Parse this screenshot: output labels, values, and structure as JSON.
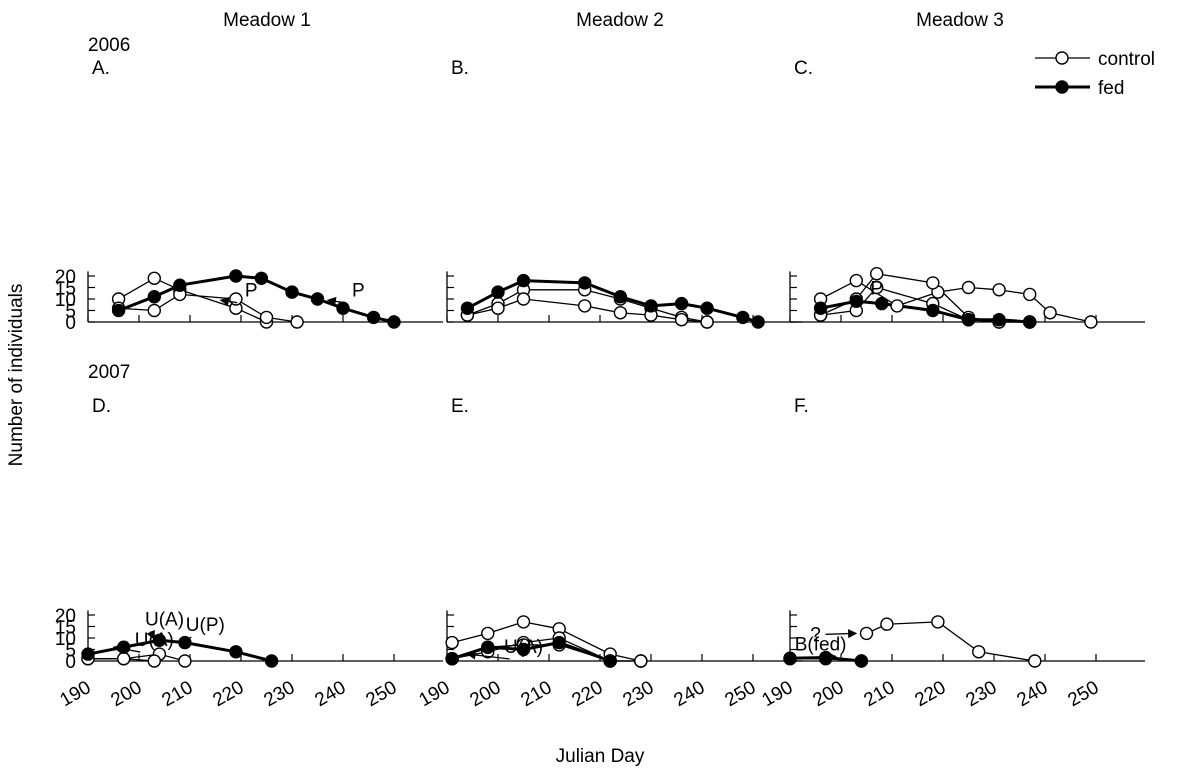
{
  "chart_data": {
    "type": "line",
    "xlabel": "Julian Day",
    "ylabel": "Number of individuals",
    "columns": [
      "Meadow 1",
      "Meadow 2",
      "Meadow 3"
    ],
    "years": [
      "2006",
      "2007"
    ],
    "xlim": [
      190,
      255
    ],
    "ylim": [
      0,
      22
    ],
    "x_ticks": [
      190,
      200,
      210,
      220,
      230,
      240,
      250
    ],
    "y_ticks": [
      0,
      5,
      10,
      15,
      20
    ],
    "legend": {
      "position": "top-right",
      "entries": [
        {
          "label": "control",
          "style": "open"
        },
        {
          "label": "fed",
          "style": "filled"
        }
      ]
    },
    "panels": [
      {
        "id": "A",
        "label": "A.",
        "row": 0,
        "col": 0,
        "control": [
          [
            [
              196,
              10
            ],
            [
              203,
              19
            ],
            [
              208,
              14
            ],
            [
              219,
              6
            ],
            [
              225,
              0
            ]
          ],
          [
            [
              196,
              6
            ],
            [
              203,
              5
            ],
            [
              208,
              12
            ],
            [
              219,
              10
            ],
            [
              225,
              2
            ],
            [
              231,
              0
            ]
          ]
        ],
        "fed": [
          [
            [
              196,
              5
            ],
            [
              203,
              11
            ],
            [
              208,
              16
            ],
            [
              219,
              20
            ],
            [
              224,
              19
            ],
            [
              230,
              13
            ],
            [
              235,
              10
            ],
            [
              240,
              6
            ],
            [
              246,
              2
            ],
            [
              250,
              0
            ]
          ]
        ],
        "annotations": [
          {
            "text": "P",
            "tx": 222,
            "ty": 11,
            "ax": 216,
            "ay": 9.5
          },
          {
            "text": "P",
            "tx": 243,
            "ty": 11,
            "ax": 237,
            "ay": 9.5
          }
        ]
      },
      {
        "id": "B",
        "label": "B.",
        "row": 0,
        "col": 1,
        "control": [
          [
            [
              194,
              3
            ],
            [
              200,
              8
            ],
            [
              205,
              14
            ],
            [
              217,
              14
            ],
            [
              224,
              10
            ],
            [
              230,
              6
            ],
            [
              236,
              2
            ],
            [
              241,
              0
            ]
          ],
          [
            [
              194,
              3
            ],
            [
              200,
              6
            ],
            [
              205,
              10
            ],
            [
              217,
              7
            ],
            [
              224,
              4
            ],
            [
              230,
              3
            ],
            [
              236,
              1
            ],
            [
              241,
              0
            ]
          ]
        ],
        "fed": [
          [
            [
              194,
              6
            ],
            [
              200,
              13
            ],
            [
              205,
              18
            ],
            [
              217,
              17
            ],
            [
              224,
              11
            ],
            [
              230,
              7
            ],
            [
              236,
              8
            ],
            [
              241,
              6
            ],
            [
              248,
              2
            ],
            [
              251,
              0
            ]
          ]
        ],
        "annotations": []
      },
      {
        "id": "C",
        "label": "C.",
        "row": 0,
        "col": 2,
        "control": [
          [
            [
              196,
              10
            ],
            [
              203,
              18
            ],
            [
              211,
              7
            ],
            [
              219,
              13
            ],
            [
              225,
              15
            ],
            [
              231,
              14
            ],
            [
              237,
              12
            ],
            [
              241,
              4
            ],
            [
              249,
              0
            ]
          ],
          [
            [
              196,
              3
            ],
            [
              203,
              10
            ],
            [
              207,
              21
            ],
            [
              218,
              17
            ],
            [
              225,
              2
            ],
            [
              231,
              0
            ],
            [
              237,
              0
            ]
          ],
          [
            [
              196,
              3
            ],
            [
              203,
              5
            ],
            [
              207,
              15
            ],
            [
              218,
              8
            ],
            [
              225,
              1
            ],
            [
              231,
              0
            ],
            [
              237,
              0
            ]
          ]
        ],
        "fed": [
          [
            [
              196,
              6
            ],
            [
              203,
              9
            ],
            [
              208,
              8
            ],
            [
              218,
              5
            ],
            [
              225,
              1
            ],
            [
              231,
              1
            ],
            [
              237,
              0
            ]
          ]
        ],
        "annotations": [
          {
            "text": "P",
            "tx": 207,
            "ty": 12,
            "ax": 202,
            "ay": 9.5
          }
        ]
      },
      {
        "id": "D",
        "label": "D.",
        "row": 1,
        "col": 0,
        "control": [
          [
            [
              190,
              1
            ],
            [
              197,
              1
            ],
            [
              204,
              3
            ],
            [
              209,
              0
            ]
          ],
          [
            [
              190,
              1
            ],
            [
              197,
              1
            ],
            [
              203,
              0
            ]
          ]
        ],
        "fed": [
          [
            [
              190,
              3
            ],
            [
              197,
              6
            ],
            [
              204,
              9
            ],
            [
              209,
              8
            ],
            [
              219,
              4
            ],
            [
              226,
              0
            ]
          ]
        ],
        "annotations": [
          {
            "text": "U(A)",
            "tx": 205,
            "ty": 15.5,
            "ax": 203,
            "ay": 9.5
          },
          {
            "text": "U(P)",
            "tx": 213,
            "ty": 13,
            "ax": 208,
            "ay": 7.5
          },
          {
            "text": "U(A)",
            "tx": 203,
            "ty": 6.5,
            "ax": 195,
            "ay": 6
          }
        ]
      },
      {
        "id": "E",
        "label": "E.",
        "row": 1,
        "col": 1,
        "control": [
          [
            [
              191,
              8
            ],
            [
              198,
              12
            ],
            [
              205,
              17
            ],
            [
              212,
              14
            ],
            [
              222,
              3
            ],
            [
              228,
              0
            ]
          ],
          [
            [
              191,
              1
            ],
            [
              198,
              4
            ],
            [
              205,
              8
            ],
            [
              212,
              10
            ],
            [
              222,
              0
            ],
            [
              228,
              0
            ]
          ],
          [
            [
              191,
              1
            ],
            [
              198,
              6
            ],
            [
              205,
              7
            ],
            [
              212,
              7
            ],
            [
              222,
              0
            ],
            [
              228,
              0
            ]
          ]
        ],
        "fed": [
          [
            [
              191,
              1
            ],
            [
              198,
              6
            ],
            [
              205,
              5
            ],
            [
              212,
              8
            ],
            [
              222,
              0
            ]
          ]
        ],
        "annotations": [
          {
            "text": "U(A)",
            "tx": 205,
            "ty": 3.5,
            "ax": 194,
            "ay": 3
          }
        ]
      },
      {
        "id": "F",
        "label": "F.",
        "row": 1,
        "col": 2,
        "control": [
          [
            [
              190,
              1
            ],
            [
              197,
              1
            ],
            [
              204,
              0
            ]
          ],
          [
            [
              205,
              12
            ],
            [
              209,
              16
            ],
            [
              219,
              17
            ],
            [
              227,
              4
            ],
            [
              238,
              0
            ]
          ]
        ],
        "fed": [
          [
            [
              190,
              1.2
            ],
            [
              197,
              1.5
            ],
            [
              204,
              0
            ]
          ]
        ],
        "annotations": [
          {
            "text": "?",
            "tx": 195,
            "ty": 9,
            "ax": 203,
            "ay": 12
          },
          {
            "text": "B(fed)",
            "tx": 196,
            "ty": 4.5,
            "ax": 199,
            "ay": 2
          }
        ]
      }
    ]
  }
}
